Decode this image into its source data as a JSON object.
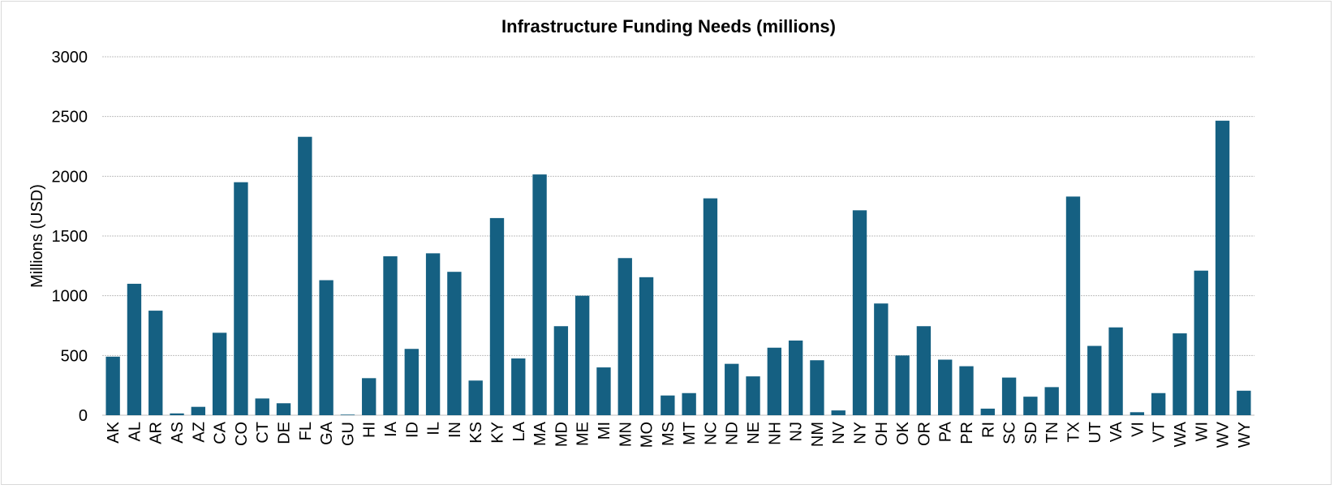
{
  "chart_data": {
    "type": "bar",
    "title": "Infrastructure Funding Needs (millions)",
    "xlabel": "",
    "ylabel": "Millions (USD)",
    "ylim": [
      0,
      3000
    ],
    "yticks": [
      0,
      500,
      1000,
      1500,
      2000,
      2500,
      3000
    ],
    "grid": true,
    "bar_color": "#156082",
    "categories": [
      "AK",
      "AL",
      "AR",
      "AS",
      "AZ",
      "CA",
      "CO",
      "CT",
      "DE",
      "FL",
      "GA",
      "GU",
      "HI",
      "IA",
      "ID",
      "IL",
      "IN",
      "KS",
      "KY",
      "LA",
      "MA",
      "MD",
      "ME",
      "MI",
      "MN",
      "MO",
      "MS",
      "MT",
      "NC",
      "ND",
      "NE",
      "NH",
      "NJ",
      "NM",
      "NV",
      "NY",
      "OH",
      "OK",
      "OR",
      "PA",
      "PR",
      "RI",
      "SC",
      "SD",
      "TN",
      "TX",
      "UT",
      "VA",
      "VI",
      "VT",
      "WA",
      "WI",
      "WV",
      "WY"
    ],
    "values": [
      490,
      1100,
      875,
      15,
      70,
      690,
      1950,
      140,
      100,
      2330,
      1130,
      5,
      310,
      1330,
      555,
      1355,
      1200,
      290,
      1650,
      475,
      2015,
      745,
      1000,
      400,
      1315,
      1155,
      165,
      185,
      1815,
      430,
      325,
      565,
      625,
      460,
      40,
      1715,
      935,
      500,
      745,
      465,
      410,
      55,
      315,
      155,
      235,
      1830,
      580,
      735,
      25,
      185,
      685,
      1210,
      2465,
      205
    ]
  }
}
